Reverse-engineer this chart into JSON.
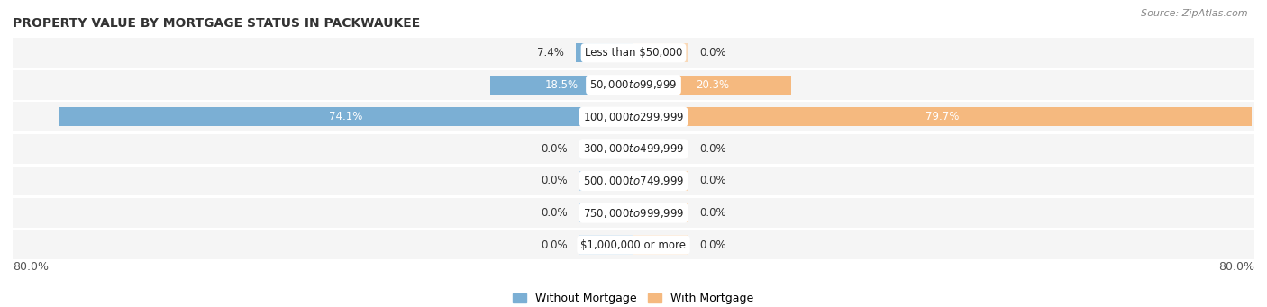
{
  "title": "PROPERTY VALUE BY MORTGAGE STATUS IN PACKWAUKEE",
  "source": "Source: ZipAtlas.com",
  "categories": [
    "Less than $50,000",
    "$50,000 to $99,999",
    "$100,000 to $299,999",
    "$300,000 to $499,999",
    "$500,000 to $749,999",
    "$750,000 to $999,999",
    "$1,000,000 or more"
  ],
  "without_mortgage": [
    7.4,
    18.5,
    74.1,
    0.0,
    0.0,
    0.0,
    0.0
  ],
  "with_mortgage": [
    0.0,
    20.3,
    79.7,
    0.0,
    0.0,
    0.0,
    0.0
  ],
  "color_without": "#7bafd4",
  "color_with": "#f5b97f",
  "color_without_light": "#b8d4ea",
  "color_with_light": "#f9d9b8",
  "x_min": -80.0,
  "x_max": 80.0,
  "row_bg_color": "#e8e8e8",
  "row_bg_light": "#f5f5f5",
  "bar_height": 0.6,
  "placeholder_size": 7.0,
  "title_fontsize": 10,
  "source_fontsize": 8,
  "tick_fontsize": 9,
  "label_fontsize": 8.5,
  "value_fontsize": 8.5,
  "cat_label_fontsize": 8.5
}
